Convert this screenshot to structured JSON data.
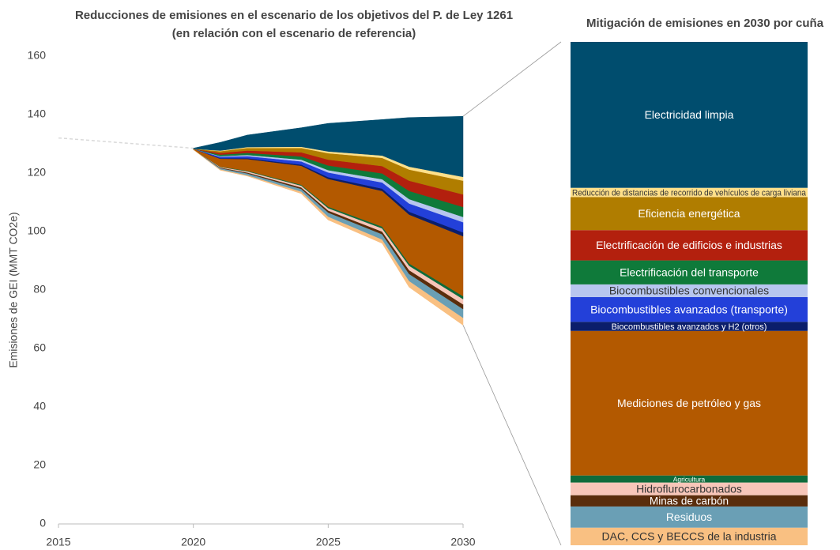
{
  "chart_data": {
    "type": "stacked_area",
    "title": [
      "Reducciones de emisiones en el escenario de los objetivos del P. de Ley 1261",
      "(en relación con el escenario de referencia)"
    ],
    "ylabel": "Emisiones de GEI (MMT CO2e)",
    "x": [
      2015,
      2020,
      2021,
      2022,
      2024,
      2025,
      2027,
      2028,
      2030
    ],
    "xlim": [
      2015,
      2030
    ],
    "xticks": [
      2015,
      2020,
      2025,
      2030
    ],
    "ylim": [
      0,
      160
    ],
    "yticks": [
      0,
      20,
      40,
      60,
      80,
      100,
      120,
      140,
      160
    ],
    "grid": false,
    "reference": {
      "color": "#d9d9d9",
      "values": [
        132,
        128.5,
        null,
        null,
        null,
        null,
        null,
        null,
        null
      ]
    },
    "target_emissions": [
      null,
      128,
      121,
      119,
      113,
      104,
      96,
      81,
      68
    ],
    "series": [
      {
        "name": "DAC, CCS y BECCS de la industria",
        "color": "#f9c082",
        "values": [
          null,
          0,
          0.3,
          0.3,
          0.7,
          1.1,
          1.3,
          2.1,
          2.5
        ]
      },
      {
        "name": "Residuos",
        "color": "#6a9fb5",
        "values": [
          null,
          0,
          0.4,
          0.6,
          0.9,
          1.4,
          1.8,
          2.4,
          3.0
        ]
      },
      {
        "name": "Minas de carbón",
        "color": "#5a2d0c",
        "values": [
          null,
          0,
          0.2,
          0.3,
          0.5,
          0.7,
          0.9,
          1.3,
          1.6
        ]
      },
      {
        "name": "Hidroflurocarbonados",
        "color": "#f7c6b9",
        "values": [
          null,
          0,
          0.2,
          0.4,
          0.6,
          0.8,
          1.1,
          1.5,
          1.8
        ]
      },
      {
        "name": "Agricultura",
        "color": "#0e6b3b",
        "values": [
          null,
          0,
          0.1,
          0.2,
          0.3,
          0.5,
          0.6,
          0.8,
          1.0
        ]
      },
      {
        "name": "Mediciones de petróleo y gas",
        "color": "#b35900",
        "values": [
          null,
          0.3,
          2.7,
          4.0,
          6.5,
          9.5,
          12.2,
          16.7,
          20.5
        ]
      },
      {
        "name": "Biocombustibles avanzados y H2 (otros)",
        "color": "#0b1e6b",
        "values": [
          null,
          0,
          0.2,
          0.3,
          0.4,
          0.6,
          0.8,
          1.0,
          1.3
        ]
      },
      {
        "name": "Biocombustibles avanzados (transporte)",
        "color": "#2340d9",
        "values": [
          null,
          0,
          0.5,
          0.7,
          1.1,
          1.6,
          2.1,
          2.8,
          3.5
        ]
      },
      {
        "name": "Biocombustibles convencionales",
        "color": "#b7c6ef",
        "values": [
          null,
          0,
          0.2,
          0.4,
          0.6,
          0.8,
          1.1,
          1.5,
          1.8
        ]
      },
      {
        "name": "Electrificación del transporte",
        "color": "#0f7a3a",
        "values": [
          null,
          0,
          0.5,
          0.7,
          1.1,
          1.6,
          2.0,
          2.8,
          3.4
        ]
      },
      {
        "name": "Electrificación de edificios e industrias",
        "color": "#b3200e",
        "values": [
          null,
          0,
          0.6,
          0.8,
          1.4,
          2.0,
          2.5,
          3.5,
          4.3
        ]
      },
      {
        "name": "Eficiencia energética",
        "color": "#b07d00",
        "values": [
          null,
          0,
          0.6,
          0.9,
          1.5,
          2.2,
          2.8,
          3.8,
          4.7
        ]
      },
      {
        "name": "Reducción de distancias de recorrido de vehículos de carga liviana",
        "color": "#ffe08a",
        "values": [
          null,
          0,
          0.2,
          0.3,
          0.4,
          0.6,
          0.8,
          1.0,
          1.3
        ]
      },
      {
        "name": "Electricidad limpia",
        "color": "#004d6e",
        "values": [
          null,
          0.2,
          2.8,
          4.1,
          6.5,
          9.6,
          12.3,
          16.8,
          20.7
        ]
      }
    ],
    "bar_title": "Mitigación de emisiones en 2030 por cuña"
  }
}
